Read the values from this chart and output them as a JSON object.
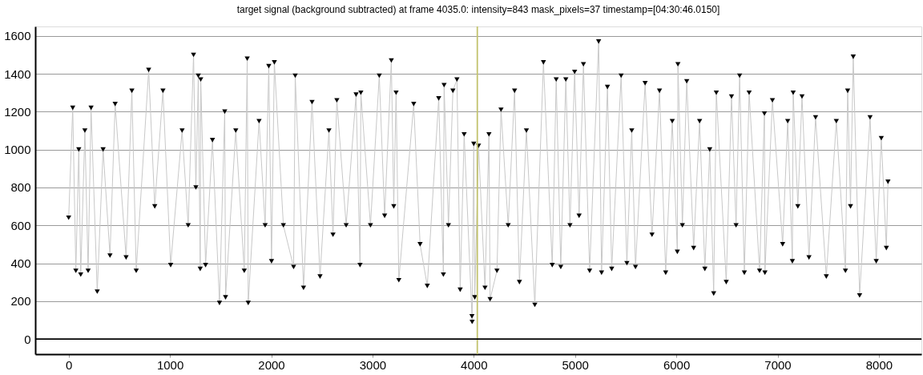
{
  "chart_data": {
    "type": "line",
    "title": "target signal (background subtracted) at frame 4035.0: intensity=843 mask_pixels=37 timestamp=[04:30:46.0150]",
    "x": [
      0,
      40,
      71,
      100,
      119,
      160,
      192,
      221,
      282,
      340,
      408,
      459,
      567,
      624,
      667,
      790,
      850,
      931,
      1007,
      1120,
      1180,
      1233,
      1256,
      1280,
      1299,
      1304,
      1352,
      1420,
      1489,
      1541,
      1549,
      1650,
      1734,
      1763,
      1773,
      1880,
      1940,
      1976,
      2003,
      2031,
      2120,
      2221,
      2237,
      2319,
      2403,
      2482,
      2570,
      2610,
      2648,
      2740,
      2838,
      2877,
      2885,
      2980,
      3067,
      3120,
      3186,
      3210,
      3233,
      3260,
      3407,
      3470,
      3541,
      3654,
      3700,
      3707,
      3750,
      3794,
      3834,
      3866,
      3905,
      3982,
      3984,
      4000,
      4010,
      4047,
      4111,
      4150,
      4161,
      4229,
      4269,
      4340,
      4403,
      4451,
      4520,
      4603,
      4688,
      4775,
      4814,
      4859,
      4909,
      4950,
      4996,
      5040,
      5083,
      5144,
      5233,
      5262,
      5320,
      5362,
      5455,
      5512,
      5560,
      5597,
      5692,
      5760,
      5834,
      5895,
      5960,
      6010,
      6016,
      6060,
      6103,
      6171,
      6230,
      6282,
      6330,
      6369,
      6395,
      6493,
      6545,
      6590,
      6625,
      6672,
      6719,
      6822,
      6870,
      6875,
      6949,
      7050,
      7100,
      7146,
      7154,
      7200,
      7241,
      7310,
      7375,
      7481,
      7580,
      7670,
      7692,
      7720,
      7747,
      7810,
      7913,
      7974,
      8024,
      8074,
      8090
    ],
    "series": [
      {
        "color": "#c8c8c8",
        "marker": "none",
        "values": [
          640,
          1220,
          360,
          1000,
          340,
          1100,
          360,
          1220,
          250,
          1000,
          440,
          1240,
          430,
          1310,
          360,
          1420,
          700,
          1310,
          390,
          1100,
          600,
          1500,
          800,
          1390,
          370,
          1370,
          390,
          1050,
          190,
          1200,
          220,
          1100,
          360,
          1480,
          190,
          1150,
          600,
          1440,
          410,
          1460,
          600,
          380,
          1390,
          270,
          1250,
          330,
          1100,
          550,
          1260,
          600,
          1290,
          390,
          1300,
          600,
          1390,
          650,
          1470,
          700,
          1300,
          310,
          1240,
          500,
          280,
          1270,
          340,
          1340,
          600,
          1310,
          1370,
          260,
          1080,
          120,
          90,
          1030,
          220,
          1020,
          270,
          1080,
          210,
          360,
          1210,
          600,
          1310,
          300,
          1100,
          180,
          1460,
          390,
          1370,
          380,
          1370,
          600,
          1410,
          650,
          1450,
          360,
          1570,
          350,
          1330,
          370,
          1390,
          400,
          1100,
          380,
          1350,
          550,
          1310,
          350,
          1150,
          460,
          1450,
          600,
          1360,
          480,
          1150,
          370,
          1000,
          240,
          1300,
          300,
          1280,
          600,
          1390,
          350,
          1300,
          360,
          1190,
          350,
          1260,
          500,
          1150,
          410,
          1300,
          700,
          1280,
          430,
          1170,
          330,
          1150,
          360,
          1310,
          700,
          1490,
          230,
          1170,
          410,
          1060,
          480,
          830
        ]
      },
      {
        "type": "scatter",
        "color": "#000000",
        "values": [
          640,
          1220,
          360,
          1000,
          340,
          1100,
          360,
          1220,
          250,
          1000,
          440,
          1240,
          430,
          1310,
          360,
          1420,
          700,
          1310,
          390,
          1100,
          600,
          1500,
          800,
          1390,
          370,
          1370,
          390,
          1050,
          190,
          1200,
          220,
          1100,
          360,
          1480,
          190,
          1150,
          600,
          1440,
          410,
          1460,
          600,
          380,
          1390,
          270,
          1250,
          330,
          1100,
          550,
          1260,
          600,
          1290,
          390,
          1300,
          600,
          1390,
          650,
          1470,
          700,
          1300,
          310,
          1240,
          500,
          280,
          1270,
          340,
          1340,
          600,
          1310,
          1370,
          260,
          1080,
          120,
          90,
          1030,
          220,
          1020,
          270,
          1080,
          210,
          360,
          1210,
          600,
          1310,
          300,
          1100,
          180,
          1460,
          390,
          1370,
          380,
          1370,
          600,
          1410,
          650,
          1450,
          360,
          1570,
          350,
          1330,
          370,
          1390,
          400,
          1100,
          380,
          1350,
          550,
          1310,
          350,
          1150,
          460,
          1450,
          600,
          1360,
          480,
          1150,
          370,
          1000,
          240,
          1300,
          300,
          1280,
          600,
          1390,
          350,
          1300,
          360,
          1190,
          350,
          1260,
          500,
          1150,
          410,
          1300,
          700,
          1280,
          430,
          1170,
          330,
          1150,
          360,
          1310,
          700,
          1490,
          230,
          1170,
          410,
          1060,
          480,
          830
        ]
      }
    ],
    "xlim": [
      -330,
      8420
    ],
    "xticks": [
      0,
      1000,
      2000,
      3000,
      4000,
      5000,
      6000,
      7000,
      8000
    ],
    "ylim": [
      -80,
      1650
    ],
    "yticks": [
      0,
      200,
      400,
      600,
      800,
      1000,
      1200,
      1400,
      1600
    ],
    "grid": "y",
    "marker": "triangle",
    "line_style": "solid",
    "ref_lines": [
      {
        "axis": "x",
        "value": 4035,
        "color": "#c3c36e"
      },
      {
        "axis": "y",
        "value": 0,
        "color": "#000000"
      }
    ]
  }
}
